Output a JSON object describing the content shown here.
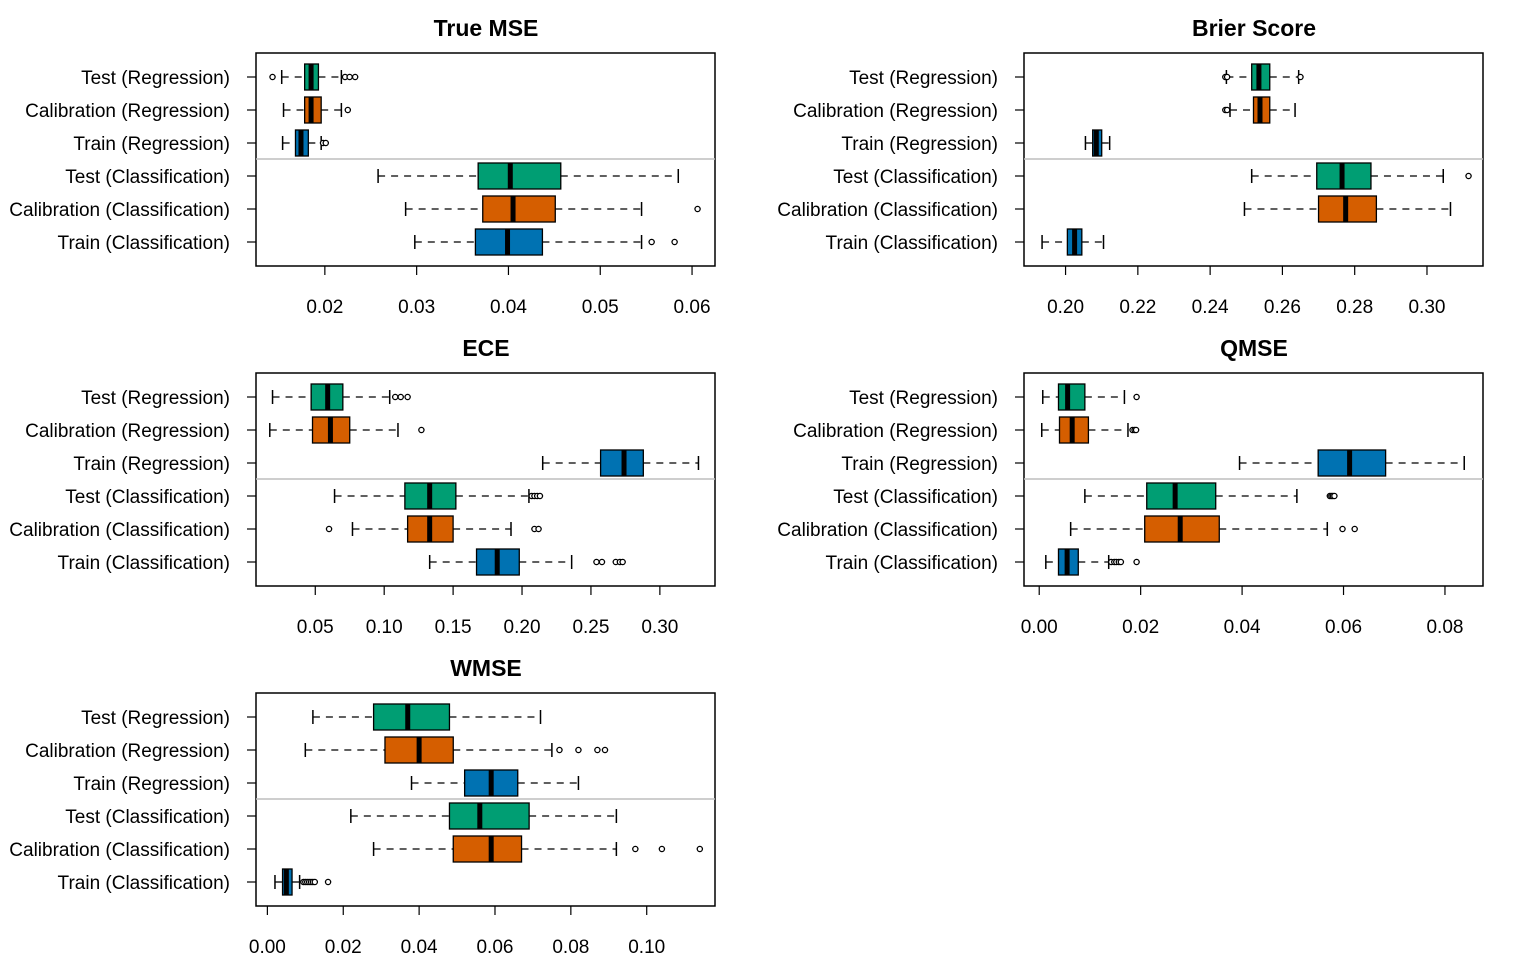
{
  "colors": {
    "test": "#009E73",
    "calibration": "#D55E00",
    "train": "#0072B2",
    "outline": "#000000",
    "separator": "#BEBEBE"
  },
  "chart_data": [
    {
      "type": "boxplot",
      "orientation": "horizontal",
      "title": "True MSE",
      "categories": [
        "Test (Regression)",
        "Calibration (Regression)",
        "Train (Regression)",
        "Test (Classification)",
        "Calibration (Classification)",
        "Train (Classification)"
      ],
      "xlim": [
        0.0125,
        0.0625
      ],
      "x_ticks": [
        0.02,
        0.03,
        0.04,
        0.05,
        0.06
      ],
      "x_tick_labels": [
        "0.02",
        "0.03",
        "0.04",
        "0.05",
        "0.06"
      ],
      "series": [
        {
          "name": "Test (Regression)",
          "color": "test",
          "whisker_low": 0.0153,
          "q1": 0.0178,
          "median": 0.0185,
          "q3": 0.0193,
          "whisker_high": 0.0218,
          "outliers": [
            0.0143,
            0.0222,
            0.0227,
            0.0233
          ]
        },
        {
          "name": "Calibration (Regression)",
          "color": "calibration",
          "whisker_low": 0.0155,
          "q1": 0.0178,
          "median": 0.0185,
          "q3": 0.0196,
          "whisker_high": 0.0218,
          "outliers": [
            0.0225
          ]
        },
        {
          "name": "Train (Regression)",
          "color": "train",
          "whisker_low": 0.0154,
          "q1": 0.0168,
          "median": 0.0174,
          "q3": 0.0182,
          "whisker_high": 0.0196,
          "outliers": [
            0.0198,
            0.0201
          ]
        },
        {
          "name": "Test (Classification)",
          "color": "test",
          "whisker_low": 0.0258,
          "q1": 0.0367,
          "median": 0.0402,
          "q3": 0.0457,
          "whisker_high": 0.0585,
          "outliers": []
        },
        {
          "name": "Calibration (Classification)",
          "color": "calibration",
          "whisker_low": 0.0288,
          "q1": 0.0372,
          "median": 0.0405,
          "q3": 0.0451,
          "whisker_high": 0.0545,
          "outliers": [
            0.0606
          ]
        },
        {
          "name": "Train (Classification)",
          "color": "train",
          "whisker_low": 0.0298,
          "q1": 0.0364,
          "median": 0.0399,
          "q3": 0.0437,
          "whisker_high": 0.0545,
          "outliers": [
            0.0556,
            0.0581
          ]
        }
      ]
    },
    {
      "type": "boxplot",
      "orientation": "horizontal",
      "title": "Brier Score",
      "categories": [
        "Test (Regression)",
        "Calibration (Regression)",
        "Train (Regression)",
        "Test (Classification)",
        "Calibration (Classification)",
        "Train (Classification)"
      ],
      "xlim": [
        0.1885,
        0.3155
      ],
      "x_ticks": [
        0.2,
        0.22,
        0.24,
        0.26,
        0.28,
        0.3
      ],
      "x_tick_labels": [
        "0.20",
        "0.22",
        "0.24",
        "0.26",
        "0.28",
        "0.30"
      ],
      "series": [
        {
          "name": "Test (Regression)",
          "color": "test",
          "whisker_low": 0.2445,
          "q1": 0.2515,
          "median": 0.2535,
          "q3": 0.2565,
          "whisker_high": 0.2645,
          "outliers": [
            0.2442,
            0.2447,
            0.265
          ]
        },
        {
          "name": "Calibration (Regression)",
          "color": "calibration",
          "whisker_low": 0.2455,
          "q1": 0.252,
          "median": 0.2538,
          "q3": 0.2565,
          "whisker_high": 0.2635,
          "outliers": [
            0.2442,
            0.2447
          ]
        },
        {
          "name": "Train (Regression)",
          "color": "train",
          "whisker_low": 0.2055,
          "q1": 0.2075,
          "median": 0.2085,
          "q3": 0.21,
          "whisker_high": 0.2122,
          "outliers": []
        },
        {
          "name": "Test (Classification)",
          "color": "test",
          "whisker_low": 0.2515,
          "q1": 0.2695,
          "median": 0.2765,
          "q3": 0.2845,
          "whisker_high": 0.3045,
          "outliers": [
            0.3115
          ]
        },
        {
          "name": "Calibration (Classification)",
          "color": "calibration",
          "whisker_low": 0.2495,
          "q1": 0.27,
          "median": 0.2775,
          "q3": 0.286,
          "whisker_high": 0.3065,
          "outliers": []
        },
        {
          "name": "Train (Classification)",
          "color": "train",
          "whisker_low": 0.1935,
          "q1": 0.2005,
          "median": 0.2025,
          "q3": 0.2045,
          "whisker_high": 0.2105,
          "outliers": []
        }
      ]
    },
    {
      "type": "boxplot",
      "orientation": "horizontal",
      "title": "ECE",
      "categories": [
        "Test (Regression)",
        "Calibration (Regression)",
        "Train (Regression)",
        "Test (Classification)",
        "Calibration (Classification)",
        "Train (Classification)"
      ],
      "xlim": [
        0.007,
        0.34
      ],
      "x_ticks": [
        0.05,
        0.1,
        0.15,
        0.2,
        0.25,
        0.3
      ],
      "x_tick_labels": [
        "0.05",
        "0.10",
        "0.15",
        "0.20",
        "0.25",
        "0.30"
      ],
      "series": [
        {
          "name": "Test (Regression)",
          "color": "test",
          "whisker_low": 0.019,
          "q1": 0.047,
          "median": 0.059,
          "q3": 0.07,
          "whisker_high": 0.104,
          "outliers": [
            0.108,
            0.112,
            0.117
          ]
        },
        {
          "name": "Calibration (Regression)",
          "color": "calibration",
          "whisker_low": 0.017,
          "q1": 0.048,
          "median": 0.061,
          "q3": 0.075,
          "whisker_high": 0.11,
          "outliers": [
            0.127
          ]
        },
        {
          "name": "Train (Regression)",
          "color": "train",
          "whisker_low": 0.215,
          "q1": 0.257,
          "median": 0.274,
          "q3": 0.288,
          "whisker_high": 0.328,
          "outliers": []
        },
        {
          "name": "Test (Classification)",
          "color": "test",
          "whisker_low": 0.064,
          "q1": 0.115,
          "median": 0.133,
          "q3": 0.152,
          "whisker_high": 0.205,
          "outliers": [
            0.207,
            0.209,
            0.211,
            0.213
          ]
        },
        {
          "name": "Calibration (Classification)",
          "color": "calibration",
          "whisker_low": 0.077,
          "q1": 0.117,
          "median": 0.133,
          "q3": 0.15,
          "whisker_high": 0.192,
          "outliers": [
            0.06,
            0.209,
            0.212
          ]
        },
        {
          "name": "Train (Classification)",
          "color": "train",
          "whisker_low": 0.133,
          "q1": 0.167,
          "median": 0.182,
          "q3": 0.198,
          "whisker_high": 0.236,
          "outliers": [
            0.254,
            0.258,
            0.268,
            0.271,
            0.273
          ]
        }
      ]
    },
    {
      "type": "boxplot",
      "orientation": "horizontal",
      "title": "QMSE",
      "categories": [
        "Test (Regression)",
        "Calibration (Regression)",
        "Train (Regression)",
        "Test (Classification)",
        "Calibration (Classification)",
        "Train (Classification)"
      ],
      "xlim": [
        -0.003,
        0.0875
      ],
      "x_ticks": [
        0.0,
        0.02,
        0.04,
        0.06,
        0.08
      ],
      "x_tick_labels": [
        "0.00",
        "0.02",
        "0.04",
        "0.06",
        "0.08"
      ],
      "series": [
        {
          "name": "Test (Regression)",
          "color": "test",
          "whisker_low": 0.0007,
          "q1": 0.0038,
          "median": 0.0056,
          "q3": 0.009,
          "whisker_high": 0.0168,
          "outliers": [
            0.0192
          ]
        },
        {
          "name": "Calibration (Regression)",
          "color": "calibration",
          "whisker_low": 0.0005,
          "q1": 0.004,
          "median": 0.0065,
          "q3": 0.0097,
          "whisker_high": 0.0175,
          "outliers": [
            0.0184,
            0.0188,
            0.0191
          ]
        },
        {
          "name": "Train (Regression)",
          "color": "train",
          "whisker_low": 0.0395,
          "q1": 0.055,
          "median": 0.0612,
          "q3": 0.0683,
          "whisker_high": 0.0838,
          "outliers": []
        },
        {
          "name": "Test (Classification)",
          "color": "test",
          "whisker_low": 0.009,
          "q1": 0.0212,
          "median": 0.0268,
          "q3": 0.0348,
          "whisker_high": 0.0508,
          "outliers": [
            0.0573,
            0.0576,
            0.0579,
            0.0582
          ]
        },
        {
          "name": "Calibration (Classification)",
          "color": "calibration",
          "whisker_low": 0.0062,
          "q1": 0.0208,
          "median": 0.0278,
          "q3": 0.0355,
          "whisker_high": 0.0568,
          "outliers": [
            0.0598,
            0.0622
          ]
        },
        {
          "name": "Train (Classification)",
          "color": "train",
          "whisker_low": 0.0013,
          "q1": 0.0038,
          "median": 0.0055,
          "q3": 0.0077,
          "whisker_high": 0.0137,
          "outliers": [
            0.0142,
            0.0148,
            0.0152,
            0.0157,
            0.0161,
            0.0192
          ]
        }
      ]
    },
    {
      "type": "boxplot",
      "orientation": "horizontal",
      "title": "WMSE",
      "categories": [
        "Test (Regression)",
        "Calibration (Regression)",
        "Train (Regression)",
        "Test (Classification)",
        "Calibration (Classification)",
        "Train (Classification)"
      ],
      "xlim": [
        -0.003,
        0.118
      ],
      "x_ticks": [
        0.0,
        0.02,
        0.04,
        0.06,
        0.08,
        0.1
      ],
      "x_tick_labels": [
        "0.00",
        "0.02",
        "0.04",
        "0.06",
        "0.08",
        "0.10"
      ],
      "series": [
        {
          "name": "Test (Regression)",
          "color": "test",
          "whisker_low": 0.012,
          "q1": 0.028,
          "median": 0.037,
          "q3": 0.048,
          "whisker_high": 0.072,
          "outliers": []
        },
        {
          "name": "Calibration (Regression)",
          "color": "calibration",
          "whisker_low": 0.01,
          "q1": 0.031,
          "median": 0.04,
          "q3": 0.049,
          "whisker_high": 0.075,
          "outliers": [
            0.077,
            0.082,
            0.087,
            0.089
          ]
        },
        {
          "name": "Train (Regression)",
          "color": "train",
          "whisker_low": 0.038,
          "q1": 0.052,
          "median": 0.059,
          "q3": 0.066,
          "whisker_high": 0.082,
          "outliers": []
        },
        {
          "name": "Test (Classification)",
          "color": "test",
          "whisker_low": 0.022,
          "q1": 0.048,
          "median": 0.056,
          "q3": 0.069,
          "whisker_high": 0.092,
          "outliers": []
        },
        {
          "name": "Calibration (Classification)",
          "color": "calibration",
          "whisker_low": 0.028,
          "q1": 0.049,
          "median": 0.059,
          "q3": 0.067,
          "whisker_high": 0.092,
          "outliers": [
            0.097,
            0.104,
            0.114
          ]
        },
        {
          "name": "Train (Classification)",
          "color": "train",
          "whisker_low": 0.002,
          "q1": 0.004,
          "median": 0.005,
          "q3": 0.0065,
          "whisker_high": 0.0085,
          "outliers": [
            0.0095,
            0.01,
            0.0105,
            0.011,
            0.0115,
            0.012,
            0.0125,
            0.016
          ]
        }
      ]
    }
  ]
}
